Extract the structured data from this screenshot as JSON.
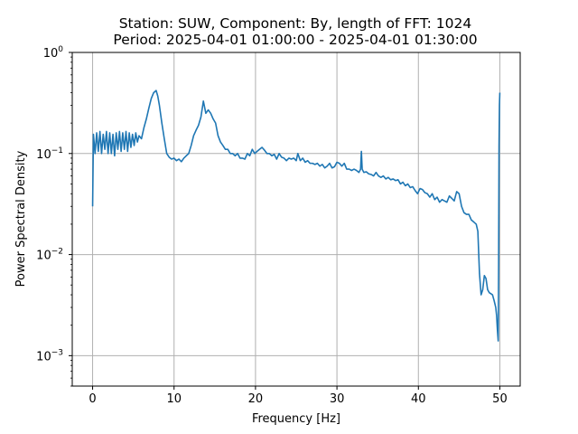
{
  "chart_data": {
    "type": "line",
    "title": "Station: SUW, Component: By, length of FFT: 1024",
    "subtitle": "Period: 2025-04-01 01:00:00 - 2025-04-01 01:30:00",
    "xlabel": "Frequency [Hz]",
    "ylabel": "Power Spectral Density",
    "xscale": "linear",
    "yscale": "log",
    "xlim": [
      -2.5,
      52.5
    ],
    "ylim": [
      0.0005,
      1
    ],
    "xticks": [
      0,
      10,
      20,
      30,
      40,
      50
    ],
    "xtick_labels": [
      "0",
      "10",
      "20",
      "30",
      "40",
      "50"
    ],
    "yticks": [
      0.001,
      0.01,
      0.1,
      1
    ],
    "ytick_labels": [
      "10",
      "10",
      "10",
      "10"
    ],
    "ytick_exponents": [
      "−3",
      "−2",
      "−1",
      "0"
    ],
    "grid": true,
    "legend": "none",
    "line_color": "#1f77b4",
    "series": [
      {
        "x": [
          0,
          0.1,
          0.3,
          0.5,
          0.7,
          0.9,
          1.1,
          1.3,
          1.5,
          1.7,
          1.9,
          2.1,
          2.3,
          2.5,
          2.7,
          2.9,
          3.1,
          3.3,
          3.5,
          3.7,
          3.9,
          4.1,
          4.3,
          4.5,
          4.7,
          4.9,
          5.1,
          5.3,
          5.5,
          5.7,
          6.0,
          6.3,
          6.6,
          6.9,
          7.2,
          7.5,
          7.8,
          8.0,
          8.2,
          8.5,
          8.8,
          9.1,
          9.4,
          9.7,
          10.0,
          10.3,
          10.6,
          10.9,
          11.2,
          11.5,
          11.8,
          12.1,
          12.4,
          12.7,
          13.0,
          13.3,
          13.6,
          13.9,
          14.2,
          14.5,
          14.8,
          15.1,
          15.4,
          15.7,
          16.0,
          16.3,
          16.6,
          16.9,
          17.2,
          17.5,
          17.8,
          18.1,
          18.4,
          18.7,
          19.0,
          19.3,
          19.6,
          19.9,
          20.2,
          20.5,
          20.8,
          21.1,
          21.4,
          21.7,
          22.0,
          22.3,
          22.6,
          22.9,
          23.2,
          23.5,
          23.8,
          24.1,
          24.4,
          24.7,
          25.0,
          25.2,
          25.5,
          25.8,
          26.1,
          26.4,
          26.7,
          27.0,
          27.3,
          27.6,
          27.9,
          28.2,
          28.5,
          28.8,
          29.1,
          29.4,
          29.7,
          30.0,
          30.3,
          30.6,
          30.9,
          31.2,
          31.5,
          31.8,
          32.1,
          32.4,
          32.7,
          32.9,
          33.0,
          33.1,
          33.3,
          33.6,
          33.9,
          34.2,
          34.5,
          34.8,
          35.1,
          35.4,
          35.7,
          36.0,
          36.3,
          36.6,
          36.9,
          37.2,
          37.5,
          37.8,
          38.1,
          38.4,
          38.7,
          39.0,
          39.3,
          39.6,
          39.9,
          40.2,
          40.5,
          40.8,
          41.1,
          41.4,
          41.7,
          42.0,
          42.3,
          42.6,
          42.9,
          43.2,
          43.5,
          43.8,
          44.1,
          44.4,
          44.7,
          45.0,
          45.3,
          45.6,
          45.9,
          46.2,
          46.5,
          46.8,
          47.1,
          47.3,
          47.5,
          47.7,
          47.9,
          48.1,
          48.3,
          48.5,
          48.7,
          48.9,
          49.1,
          49.3,
          49.5,
          49.6,
          49.7,
          49.8,
          49.85,
          49.9,
          49.95,
          50.0
        ],
        "y": [
          0.03,
          0.155,
          0.1,
          0.16,
          0.105,
          0.165,
          0.1,
          0.155,
          0.11,
          0.165,
          0.1,
          0.16,
          0.1,
          0.155,
          0.095,
          0.16,
          0.11,
          0.165,
          0.105,
          0.16,
          0.11,
          0.165,
          0.105,
          0.16,
          0.115,
          0.155,
          0.12,
          0.16,
          0.13,
          0.15,
          0.14,
          0.18,
          0.22,
          0.28,
          0.35,
          0.4,
          0.42,
          0.37,
          0.3,
          0.2,
          0.14,
          0.1,
          0.092,
          0.088,
          0.09,
          0.085,
          0.088,
          0.083,
          0.09,
          0.095,
          0.1,
          0.12,
          0.15,
          0.17,
          0.19,
          0.23,
          0.33,
          0.25,
          0.27,
          0.25,
          0.22,
          0.2,
          0.15,
          0.13,
          0.12,
          0.11,
          0.11,
          0.1,
          0.1,
          0.095,
          0.1,
          0.09,
          0.09,
          0.088,
          0.1,
          0.095,
          0.11,
          0.1,
          0.105,
          0.11,
          0.115,
          0.108,
          0.1,
          0.1,
          0.095,
          0.098,
          0.088,
          0.1,
          0.092,
          0.09,
          0.085,
          0.09,
          0.088,
          0.09,
          0.085,
          0.1,
          0.085,
          0.09,
          0.082,
          0.085,
          0.08,
          0.08,
          0.078,
          0.08,
          0.075,
          0.078,
          0.072,
          0.075,
          0.08,
          0.072,
          0.074,
          0.082,
          0.08,
          0.075,
          0.08,
          0.07,
          0.07,
          0.068,
          0.07,
          0.068,
          0.065,
          0.07,
          0.105,
          0.07,
          0.065,
          0.066,
          0.063,
          0.062,
          0.06,
          0.065,
          0.06,
          0.058,
          0.06,
          0.056,
          0.058,
          0.055,
          0.056,
          0.054,
          0.055,
          0.05,
          0.052,
          0.048,
          0.05,
          0.046,
          0.047,
          0.043,
          0.04,
          0.045,
          0.044,
          0.041,
          0.04,
          0.037,
          0.04,
          0.035,
          0.037,
          0.033,
          0.035,
          0.034,
          0.033,
          0.038,
          0.036,
          0.034,
          0.042,
          0.04,
          0.03,
          0.026,
          0.025,
          0.025,
          0.022,
          0.021,
          0.02,
          0.017,
          0.0065,
          0.004,
          0.0045,
          0.0062,
          0.0058,
          0.0045,
          0.0042,
          0.0041,
          0.004,
          0.0035,
          0.003,
          0.0025,
          0.0018,
          0.0014,
          0.008,
          0.12,
          0.3,
          0.4
        ]
      }
    ]
  }
}
